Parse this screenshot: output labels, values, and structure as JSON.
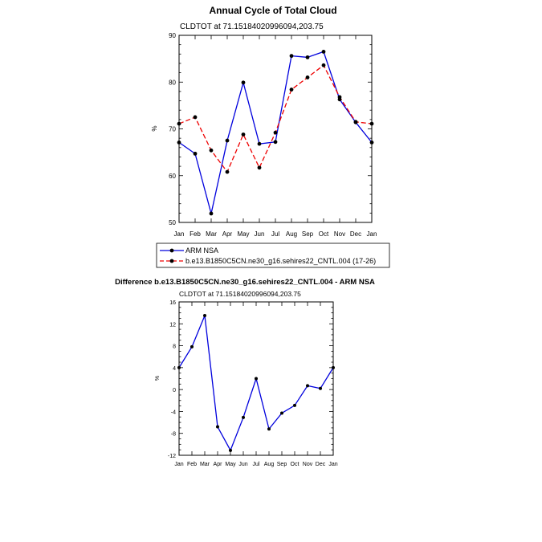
{
  "chart_data": [
    {
      "type": "line",
      "title": "Annual Cycle of Total Cloud",
      "subtitle": "CLDTOT at 71.15184020996094,203.75",
      "ylabel": "%",
      "ylim": [
        50,
        90
      ],
      "yticks": [
        50,
        60,
        70,
        80,
        90
      ],
      "categories": [
        "Jan",
        "Feb",
        "Mar",
        "Apr",
        "May",
        "Jun",
        "Jul",
        "Aug",
        "Sep",
        "Oct",
        "Nov",
        "Dec",
        "Jan"
      ],
      "series": [
        {
          "name": "ARM NSA",
          "color": "#0000dd",
          "dash": "solid",
          "values": [
            67.1,
            64.7,
            51.9,
            67.5,
            79.9,
            66.8,
            67.2,
            85.6,
            85.3,
            86.5,
            76.3,
            71.4,
            67.1
          ]
        },
        {
          "name": "b.e13.B1850C5CN.ne30_g16.sehires22_CNTL.004 (17-26)",
          "color": "#ee0000",
          "dash": "dashed",
          "values": [
            71.1,
            72.5,
            65.4,
            60.8,
            68.8,
            61.7,
            69.2,
            78.4,
            81.0,
            83.6,
            76.8,
            71.5,
            71.1
          ]
        }
      ],
      "legend": "below"
    },
    {
      "type": "line",
      "title": "Difference b.e13.B1850C5CN.ne30_g16.sehires22_CNTL.004 - ARM NSA",
      "subtitle": "CLDTOT at 71.15184020996094,203.75",
      "ylabel": "%",
      "ylim": [
        -12,
        16
      ],
      "yticks": [
        -12,
        -8,
        -4,
        0,
        4,
        8,
        12,
        16
      ],
      "categories": [
        "Jan",
        "Feb",
        "Mar",
        "Apr",
        "May",
        "Jun",
        "Jul",
        "Aug",
        "Sep",
        "Oct",
        "Nov",
        "Dec",
        "Jan"
      ],
      "series": [
        {
          "color": "#0000dd",
          "dash": "solid",
          "values": [
            4.0,
            7.8,
            13.5,
            -6.8,
            -11.1,
            -5.1,
            2.0,
            -7.2,
            -4.3,
            -2.9,
            0.7,
            0.2,
            4.0
          ]
        }
      ]
    }
  ]
}
